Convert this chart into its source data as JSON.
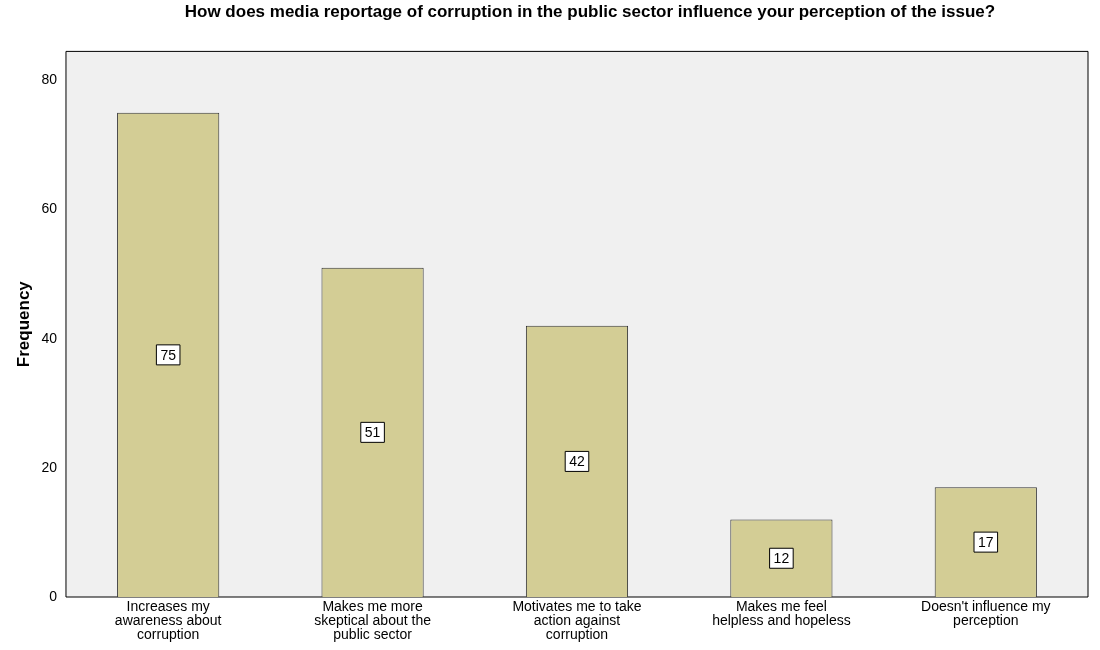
{
  "chart_data": {
    "type": "bar",
    "title": "How does media reportage of corruption in the public sector influence your perception of the issue?",
    "ylabel": "Frequency",
    "categories": [
      "Increases my awareness about corruption",
      "Makes me more skeptical about the public sector",
      "Motivates me to take action against corruption",
      "Makes me feel helpless and hopeless",
      "Doesn't influence my perception"
    ],
    "values": [
      75,
      51,
      42,
      12,
      17
    ],
    "color": "#d3cd95",
    "ylim": [
      0,
      84.5
    ],
    "yticks": [
      0,
      20,
      40,
      60,
      80
    ],
    "grid": false,
    "legend": false,
    "data_labels": true
  }
}
